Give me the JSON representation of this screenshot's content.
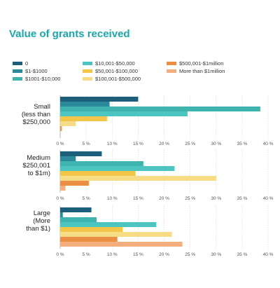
{
  "title": "Value of grants received",
  "chart_data": {
    "type": "bar",
    "orientation": "horizontal",
    "title": "Value of grants received",
    "xlim": [
      0,
      40
    ],
    "x_ticks": [
      "0 %",
      "5 %",
      "10 %",
      "15 %",
      "20 %",
      "25 %",
      "30 %",
      "35 %",
      "40 %"
    ],
    "legend_position": "top",
    "series": [
      {
        "name": "0",
        "color": "#1d5f7a"
      },
      {
        "name": "$1-$1000",
        "color": "#2a8a99"
      },
      {
        "name": "$1001-$10,000",
        "color": "#3fb3ad"
      },
      {
        "name": "$10,001-$50,000",
        "color": "#4cc4c0"
      },
      {
        "name": "$50,001-$100,000",
        "color": "#f3c64a"
      },
      {
        "name": "$100,001-$500,000",
        "color": "#f6dc85"
      },
      {
        "name": "$500,001-$1million",
        "color": "#ec8f44"
      },
      {
        "name": "More than $1million",
        "color": "#f2ae7d"
      }
    ],
    "groups": [
      {
        "label_lines": [
          "Small",
          "(less than",
          "$250,000"
        ],
        "values": [
          15,
          9.5,
          38.5,
          24.5,
          9,
          3,
          0.3,
          0
        ]
      },
      {
        "label_lines": [
          "Medium",
          "$250,001",
          "to $1m)"
        ],
        "values": [
          8,
          3,
          16,
          22,
          14.5,
          30,
          5.5,
          1
        ]
      },
      {
        "label_lines": [
          "Large",
          "(More",
          "than $1)"
        ],
        "values": [
          6,
          0.5,
          7,
          18.5,
          12,
          21.5,
          11,
          23.5
        ]
      }
    ]
  }
}
